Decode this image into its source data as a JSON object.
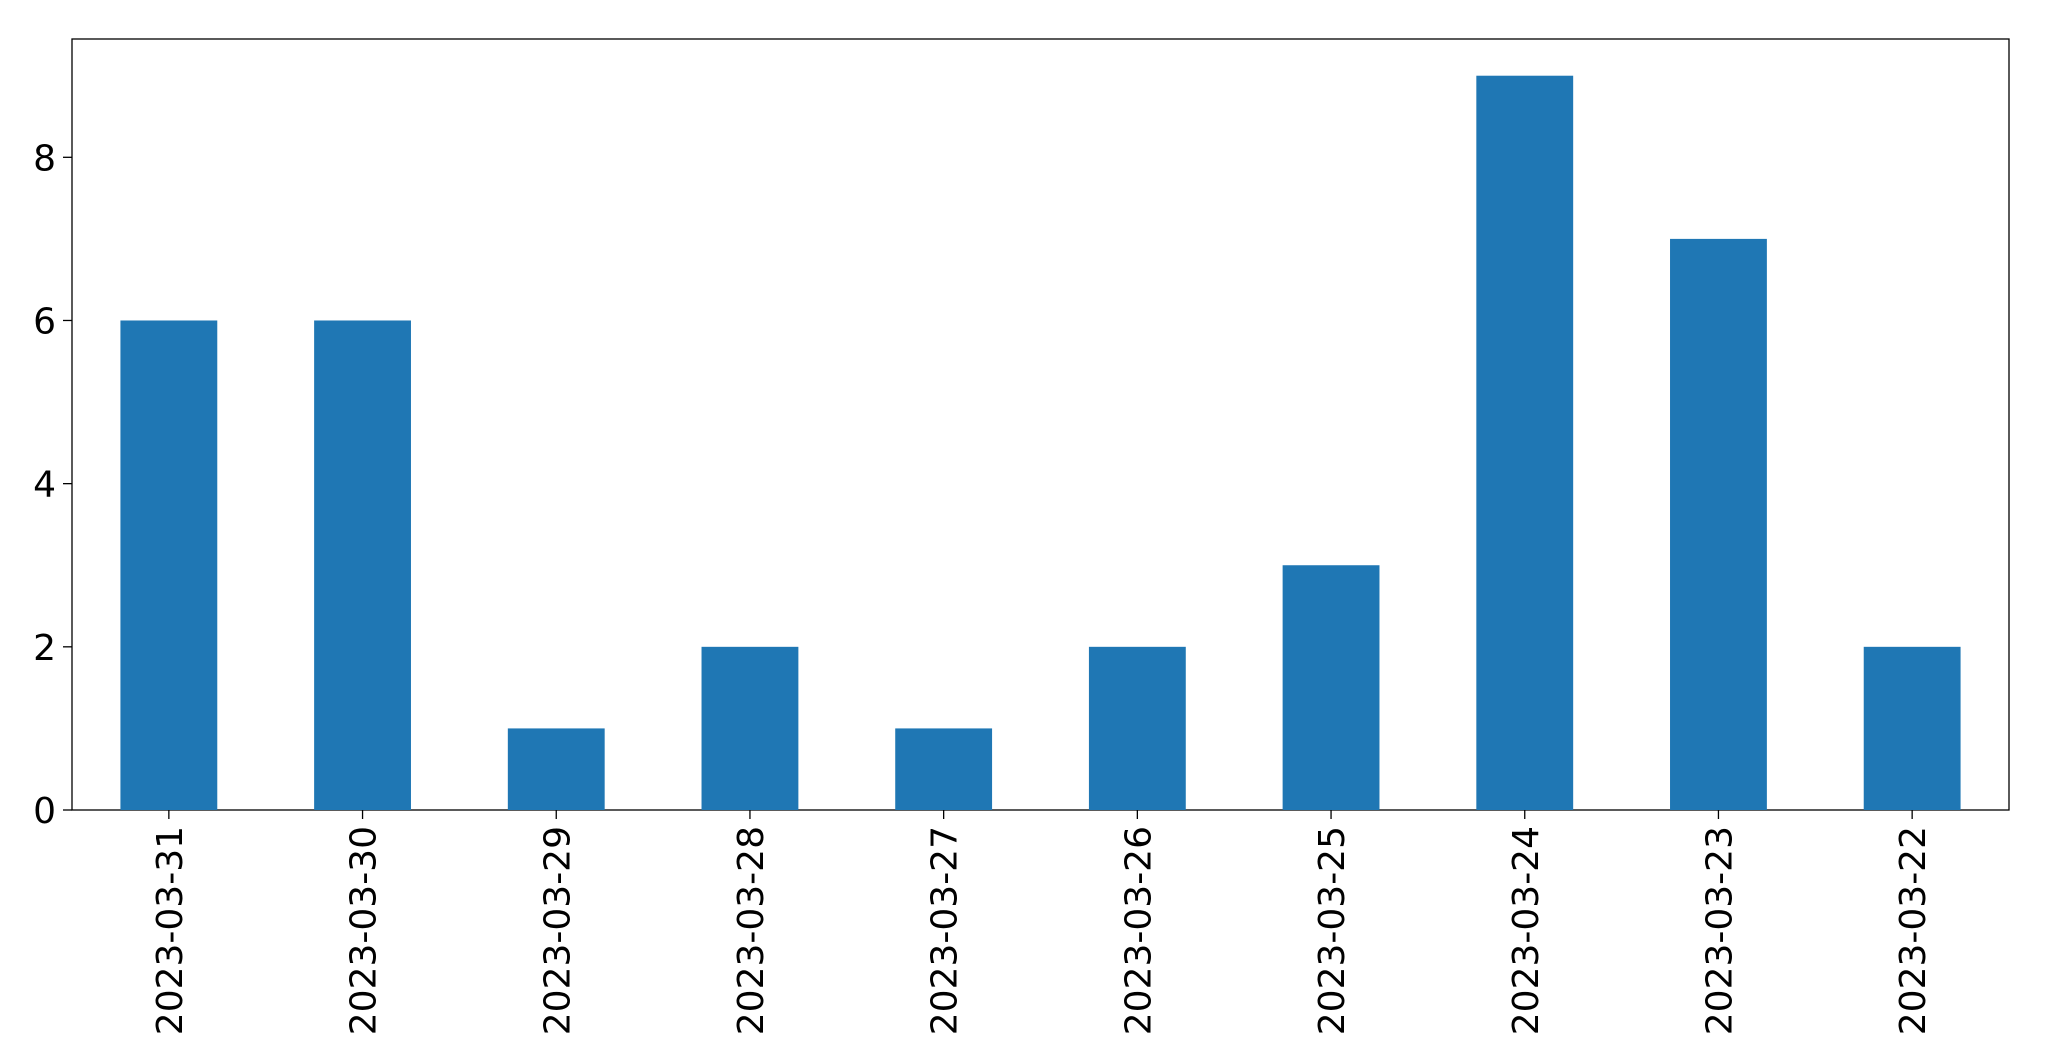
{
  "chart_data": {
    "type": "bar",
    "categories": [
      "2023-03-31",
      "2023-03-30",
      "2023-03-29",
      "2023-03-28",
      "2023-03-27",
      "2023-03-26",
      "2023-03-25",
      "2023-03-24",
      "2023-03-23",
      "2023-03-22"
    ],
    "values": [
      6,
      6,
      1,
      2,
      1,
      2,
      3,
      9,
      7,
      2
    ],
    "color": "#1f77b4",
    "ylim": [
      0,
      9.45
    ],
    "yticks": [
      0,
      2,
      4,
      6,
      8
    ],
    "grid": false
  }
}
